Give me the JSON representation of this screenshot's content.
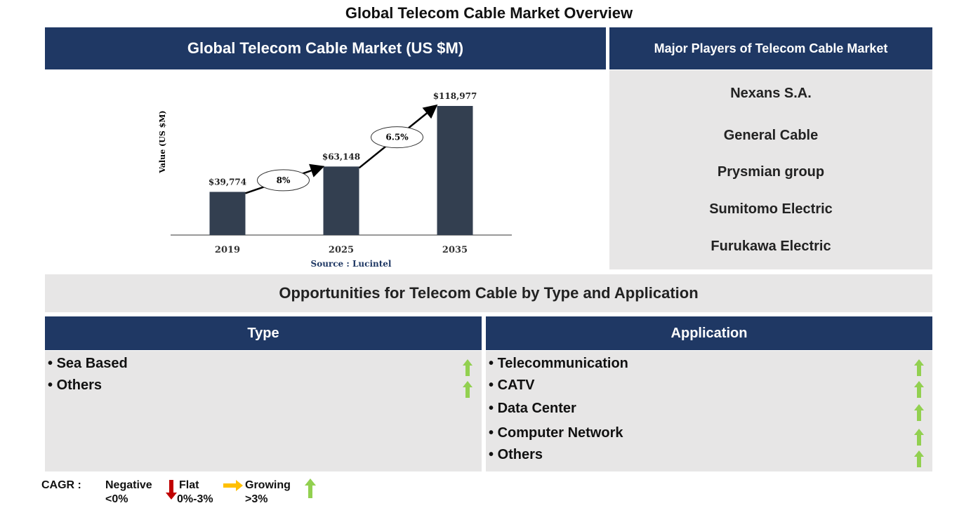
{
  "title": "Global Telecom Cable Market Overview",
  "chart_data": {
    "type": "bar",
    "title": "Global Telecom Cable Market (US $M)",
    "y_label": "Value (US $M)",
    "categories": [
      "2019",
      "2025",
      "2035"
    ],
    "values": [
      39774,
      63148,
      118977
    ],
    "value_labels": [
      "$39,774",
      "$63,148",
      "$118,977"
    ],
    "color": "#333f50",
    "growth_labels": [
      "8%",
      "6.5%"
    ],
    "source": "Source : Lucintel"
  },
  "players": {
    "title": "Major Players of Telecom Cable Market",
    "items": [
      "Nexans S.A.",
      "General Cable",
      "Prysmian group",
      "Sumitomo Electric",
      "Furukawa Electric"
    ]
  },
  "opportunities": {
    "title": "Opportunities for Telecom Cable by Type and Application",
    "type": {
      "header": "Type",
      "items": [
        "Sea Based",
        "Others"
      ]
    },
    "application": {
      "header": "Application",
      "items": [
        "Telecommunication",
        "CATV",
        "Data Center",
        "Computer Network",
        "Others"
      ]
    }
  },
  "legend": {
    "label": "CAGR :",
    "negative": [
      "Negative",
      "<0%"
    ],
    "flat": [
      "Flat",
      "0%-3%"
    ],
    "growing": [
      "Growing",
      ">3%"
    ]
  }
}
